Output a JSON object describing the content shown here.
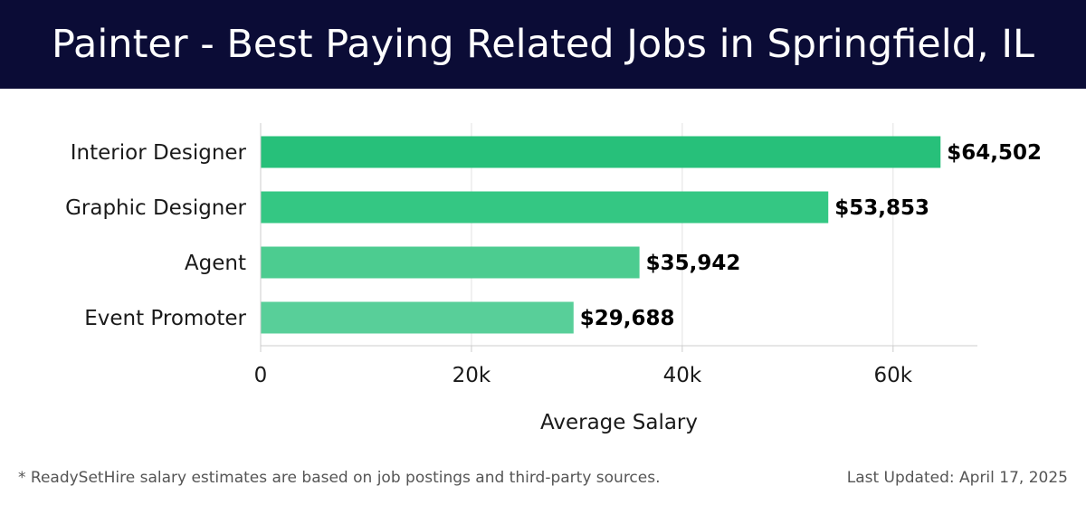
{
  "header": {
    "title": "Painter - Best Paying Related Jobs in Springfield, IL",
    "background_color": "#0b0c36"
  },
  "chart_data": {
    "type": "bar",
    "orientation": "horizontal",
    "categories": [
      "Interior Designer",
      "Graphic Designer",
      "Agent",
      "Event Promoter"
    ],
    "values": [
      64502,
      53853,
      35942,
      29688
    ],
    "value_labels": [
      "$64,502",
      "$53,853",
      "$35,942",
      "$29,688"
    ],
    "bar_colors": [
      "#27c07a",
      "#34c783",
      "#4ccc90",
      "#58cf99"
    ],
    "xlabel": "Average Salary",
    "ylabel": "",
    "xlim": [
      0,
      68000
    ],
    "x_ticks": [
      0,
      20000,
      40000,
      60000
    ],
    "x_tick_labels": [
      "0",
      "20k",
      "40k",
      "60k"
    ],
    "grid": "vertical",
    "legend": "none"
  },
  "footer": {
    "note": "* ReadySetHire salary estimates are based on job postings and third-party sources.",
    "last_updated": "Last Updated: April 17, 2025"
  }
}
